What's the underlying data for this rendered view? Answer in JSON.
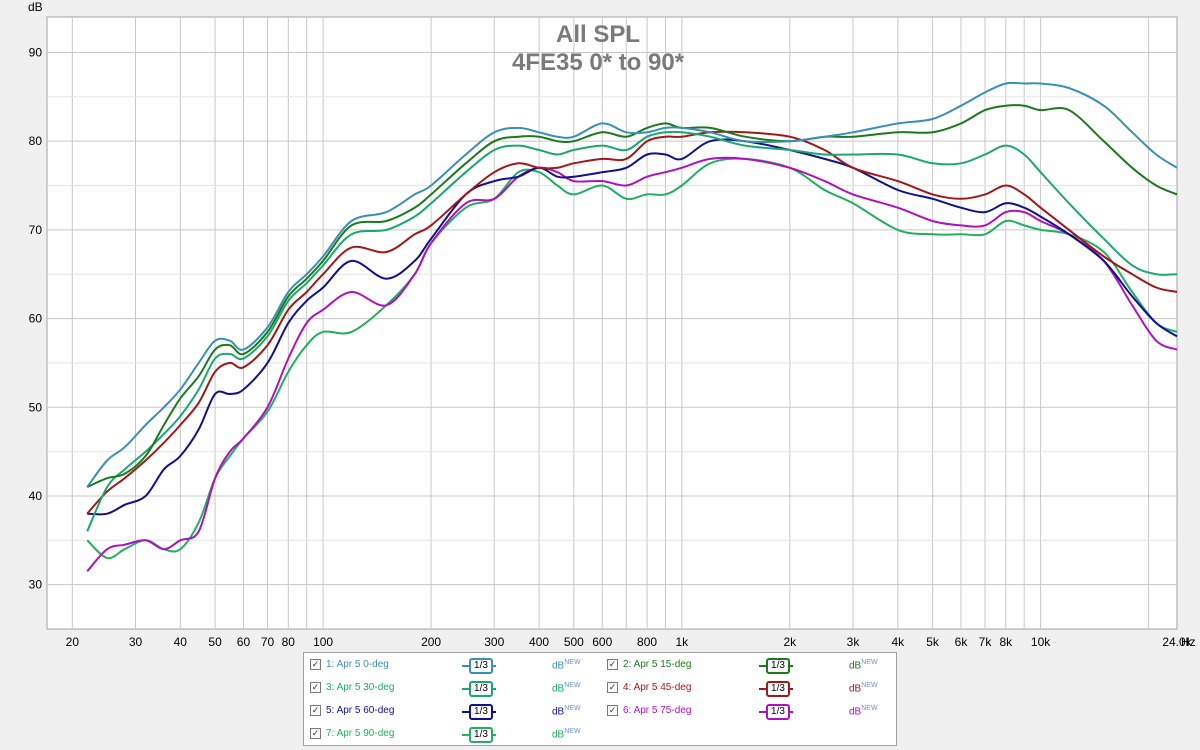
{
  "chart_data": {
    "type": "line",
    "title": "All SPL",
    "subtitle": "4FE35 0* to 90*",
    "ylabel": "dB",
    "xlabel": "Hz",
    "x_scale": "log",
    "xlim": [
      17,
      24000
    ],
    "ylim": [
      25,
      94
    ],
    "yticks": [
      30,
      40,
      50,
      60,
      70,
      80,
      90
    ],
    "xtick_values": [
      20,
      30,
      40,
      50,
      60,
      70,
      80,
      100,
      200,
      300,
      400,
      500,
      600,
      800,
      1000,
      2000,
      3000,
      4000,
      5000,
      6000,
      7000,
      8000,
      10000,
      24000
    ],
    "xtick_labels": [
      "20",
      "30",
      "40",
      "50",
      "60",
      "70",
      "80",
      "100",
      "200",
      "300",
      "400",
      "500",
      "600",
      "800",
      "1k",
      "2k",
      "3k",
      "4k",
      "5k",
      "6k",
      "7k",
      "8k",
      "10k",
      "24.0k"
    ],
    "grid": true,
    "legend_position": "bottom",
    "x": [
      22,
      25,
      28,
      32,
      36,
      40,
      45,
      50,
      55,
      60,
      70,
      80,
      90,
      100,
      120,
      150,
      180,
      200,
      250,
      300,
      350,
      400,
      450,
      500,
      600,
      700,
      800,
      900,
      1000,
      1200,
      1500,
      2000,
      2500,
      3000,
      4000,
      5000,
      6000,
      7000,
      8000,
      9000,
      10000,
      12000,
      15000,
      18000,
      21000,
      24000
    ],
    "series": [
      {
        "name": "1: Apr 5 0-deg",
        "color": "#3a8fb8",
        "values": [
          41,
          44,
          45.5,
          48,
          50,
          52,
          55,
          57.5,
          57.5,
          56.5,
          59,
          63,
          65,
          67,
          71,
          72,
          74,
          75,
          78.5,
          81,
          81.5,
          81,
          80.5,
          80.5,
          82,
          81,
          81,
          81.5,
          81.5,
          81,
          80,
          80,
          80.5,
          81,
          82,
          82.5,
          84,
          85.5,
          86.5,
          86.5,
          86.5,
          86,
          84,
          81,
          78.5,
          77
        ]
      },
      {
        "name": "2: Apr 5 15-deg",
        "color": "#1b7a1b",
        "values": [
          41,
          42,
          42.5,
          44.5,
          48,
          51,
          53.5,
          56.5,
          57,
          56,
          58.5,
          62.5,
          64.5,
          66.5,
          70.5,
          71,
          72.5,
          74,
          77.5,
          80,
          80.5,
          80.5,
          80,
          80,
          81,
          80.5,
          81.5,
          82,
          81.5,
          81.5,
          80.5,
          80,
          80.5,
          80.5,
          81,
          81,
          82,
          83.5,
          84,
          84,
          83.5,
          83.5,
          80,
          77,
          75,
          74
        ]
      },
      {
        "name": "3: Apr 5 30-deg",
        "color": "#1aa870",
        "values": [
          36,
          41,
          43,
          45,
          47,
          49,
          52,
          55.5,
          56,
          55.5,
          58,
          62,
          64,
          66,
          69.5,
          70,
          71.5,
          73,
          76.5,
          79,
          79.5,
          79,
          78.5,
          79,
          79.5,
          79,
          80.5,
          81,
          81,
          80.5,
          79.5,
          79,
          78.5,
          78.5,
          78.5,
          77.5,
          77.5,
          78.5,
          79.5,
          78.5,
          76.5,
          73,
          69,
          66,
          65,
          65
        ]
      },
      {
        "name": "4: Apr 5 45-deg",
        "color": "#a01818",
        "values": [
          38,
          40.5,
          42,
          44,
          46,
          48,
          50.5,
          54,
          55,
          54.5,
          57,
          61,
          63,
          65,
          68,
          67.5,
          69.5,
          70.5,
          74,
          76.5,
          77.5,
          77,
          77,
          77.5,
          78,
          78,
          80,
          80.5,
          80.5,
          81,
          81,
          80.5,
          79,
          77,
          75.5,
          74,
          73.5,
          74,
          75,
          74,
          72.5,
          70,
          67,
          65,
          63.5,
          63
        ]
      },
      {
        "name": "5: Apr 5 60-deg",
        "color": "#101090",
        "values": [
          38,
          38,
          39,
          40,
          43,
          44.5,
          47.5,
          51.5,
          51.5,
          52,
          55,
          59.5,
          62,
          63.5,
          66.5,
          64.5,
          66.5,
          69,
          74,
          75.5,
          76,
          77,
          76,
          76,
          76.5,
          77,
          78.5,
          78.5,
          78,
          80,
          80,
          79,
          78,
          77,
          74.5,
          73.5,
          72.5,
          72,
          73,
          72.5,
          71.5,
          69.5,
          66.5,
          62.5,
          59.5,
          58
        ]
      },
      {
        "name": "6: Apr 5 75-deg",
        "color": "#b010c0",
        "values": [
          31.5,
          34,
          34.5,
          35,
          34,
          35,
          36,
          42,
          45,
          46.5,
          50,
          55.5,
          59.5,
          61,
          63,
          61.5,
          65,
          68.5,
          73,
          73.5,
          76,
          77,
          76.5,
          75.5,
          75.5,
          75,
          76,
          76.5,
          77,
          78,
          78,
          77,
          75.5,
          74,
          72.5,
          71,
          70.5,
          70.5,
          72,
          72,
          71,
          69.5,
          66.5,
          61.5,
          57.5,
          56.5
        ]
      },
      {
        "name": "7: Apr 5 90-deg",
        "color": "#20b060",
        "values": [
          35,
          33,
          34,
          35,
          34,
          34,
          37,
          42,
          44.5,
          46.5,
          49.5,
          54,
          57,
          58.5,
          58.5,
          61.5,
          65,
          68.5,
          72.5,
          73.5,
          76.5,
          76.5,
          75,
          74,
          75,
          73.5,
          74,
          74,
          75,
          77.5,
          78,
          77,
          74.5,
          73,
          70,
          69.5,
          69.5,
          69.5,
          71,
          70.5,
          70,
          69.5,
          67.5,
          63,
          59.5,
          58.5
        ]
      }
    ]
  },
  "legend": {
    "smoothing_label": "1/3",
    "unit_label": "dB",
    "unit_superscript": "NEW",
    "check_mark": "✓"
  }
}
